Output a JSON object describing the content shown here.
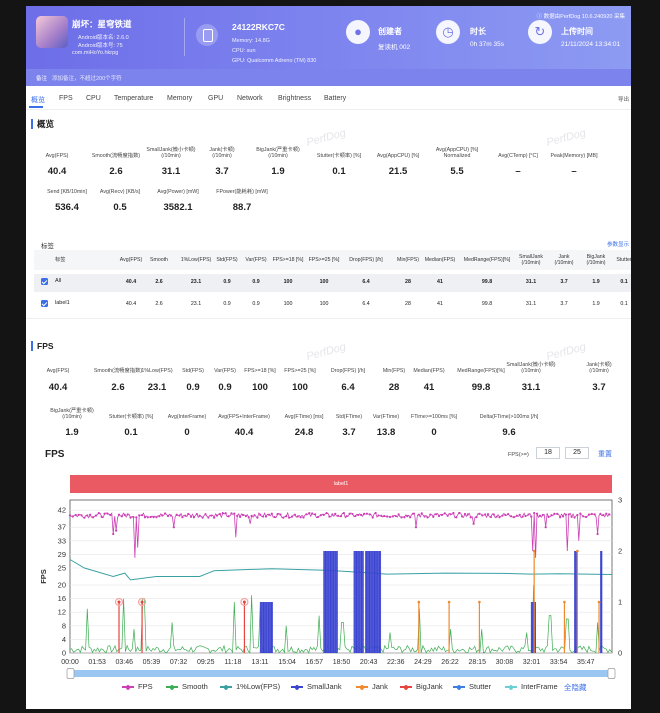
{
  "header": {
    "app_name": "崩坏：星穹铁道",
    "app_version_line": "Android版本名: 2.6.0",
    "app_code_line": "Android版本号: 75",
    "app_package": "com.miHoYo.hkrpg",
    "device_name": "24122RKC7C",
    "memory": "Memory: 14.8G",
    "cpu": "CPU: sun",
    "gpu": "GPU: Qualcomm Adreno (TM) 830",
    "creator_label": "创建者",
    "creator_value": "复读机 002",
    "duration_label": "时长",
    "duration_value": "0h 37m 35s",
    "upload_label": "上传时间",
    "upload_value": "21/11/2024 13:34:01",
    "data_source": "ⓘ 数据由PerfDog 10.6.240920 采集",
    "note_label": "备注",
    "note_placeholder": "添加备注，不超过200个字符"
  },
  "tabs": [
    "概览",
    "FPS",
    "CPU",
    "Temperature",
    "Memory",
    "GPU",
    "Network",
    "Brightness",
    "Battery"
  ],
  "export_label": "导出",
  "overview": {
    "title": "概览",
    "watermark": "PerfDog",
    "row1": [
      {
        "label": "Avg(FPS)",
        "value": "40.4"
      },
      {
        "label": "Smooth(流畅度指数)",
        "value": "2.6"
      },
      {
        "label": "SmallJank(微小卡顿)\n(/10min)",
        "value": "31.1"
      },
      {
        "label": "Jank(卡顿)\n(/10min)",
        "value": "3.7"
      },
      {
        "label": "BigJank(严重卡顿)\n(/10min)",
        "value": "1.9"
      },
      {
        "label": "Stutter(卡顿率) [%]",
        "value": "0.1"
      },
      {
        "label": "Avg(AppCPU) [%]",
        "value": "21.5"
      },
      {
        "label": "Avg(AppCPU) [%]\nNormalized",
        "value": "5.5"
      },
      {
        "label": "Avg(CTemp) [°C]",
        "value": "–"
      },
      {
        "label": "Peak(Memory) [MB]",
        "value": "–"
      }
    ],
    "row2": [
      {
        "label": "Send [KB/10min]",
        "value": "536.4"
      },
      {
        "label": "Avg(Recv) [KB/s]",
        "value": "0.5"
      },
      {
        "label": "Avg(Power) [mW]",
        "value": "3582.1"
      },
      {
        "label": "FPower(能耗耗) [mW]",
        "value": "88.7"
      }
    ]
  },
  "table": {
    "caption": "标签",
    "more": "参数显示",
    "headers": [
      "标签",
      "Avg(FPS)",
      "Smooth",
      "1%Low(FPS)",
      "Std(FPS)",
      "Var(FPS)",
      "FPS>=18 [%]",
      "FPS>=25 [%]",
      "Drop(FPS) [/h]",
      "Min(FPS)",
      "Median(FPS)",
      "MedRange(FPS)[%]",
      "SmallJank\n(/10min)",
      "Jank\n(/10min)",
      "BigJank\n(/10min)",
      "Stutter"
    ],
    "rows": [
      {
        "name": "All",
        "cells": [
          "40.4",
          "2.6",
          "23.1",
          "0.9",
          "0.9",
          "100",
          "100",
          "6.4",
          "28",
          "41",
          "99.8",
          "31.1",
          "3.7",
          "1.9",
          "0.1"
        ]
      },
      {
        "name": "label1",
        "cells": [
          "40.4",
          "2.6",
          "23.1",
          "0.9",
          "0.9",
          "100",
          "100",
          "6.4",
          "28",
          "41",
          "99.8",
          "31.1",
          "3.7",
          "1.9",
          "0.1"
        ]
      }
    ]
  },
  "fps": {
    "title": "FPS",
    "row1": [
      {
        "label": "Avg(FPS)",
        "value": "40.4"
      },
      {
        "label": "Smooth(流畅度指数)",
        "value": "2.6"
      },
      {
        "label": "1%Low(FPS)",
        "value": "23.1"
      },
      {
        "label": "Std(FPS)",
        "value": "0.9"
      },
      {
        "label": "Var(FPS)",
        "value": "0.9"
      },
      {
        "label": "FPS>=18 [%]",
        "value": "100"
      },
      {
        "label": "FPS>=25 [%]",
        "value": "100"
      },
      {
        "label": "Drop(FPS) [/h]",
        "value": "6.4"
      },
      {
        "label": "Min(FPS)",
        "value": "28"
      },
      {
        "label": "Median(FPS)",
        "value": "41"
      },
      {
        "label": "MedRange(FPS)[%]",
        "value": "99.8"
      },
      {
        "label": "SmallJank(微小卡顿)\n(/10min)",
        "value": "31.1"
      },
      {
        "label": "Jank(卡顿)\n(/10min)",
        "value": "3.7"
      }
    ],
    "row2": [
      {
        "label": "BigJank(严重卡顿)\n(/10min)",
        "value": "1.9"
      },
      {
        "label": "Stutter(卡顿率) [%]",
        "value": "0.1"
      },
      {
        "label": "Avg(InterFrame)",
        "value": "0"
      },
      {
        "label": "Avg(FPS+InterFrame)",
        "value": "40.4"
      },
      {
        "label": "Avg(FTime) [ms]",
        "value": "24.8"
      },
      {
        "label": "Std(FTime)",
        "value": "3.7"
      },
      {
        "label": "Var(FTime)",
        "value": "13.8"
      },
      {
        "label": "FTime>=100ms [%]",
        "value": "0"
      },
      {
        "label": "Delta(FTime)>100ms [/h]",
        "value": "9.6"
      }
    ],
    "controls": {
      "label": "FPS(>=)",
      "v1": "18",
      "v2": "25",
      "reset": "重置"
    },
    "label_bar": "label1",
    "legend_all": "全隐藏"
  },
  "chart_data": {
    "type": "line",
    "title": "FPS",
    "xlabel": "",
    "ylabel": "FPS",
    "y2label": "",
    "ylim": [
      0,
      45
    ],
    "y2lim": [
      0,
      3
    ],
    "yticks": [
      0,
      4,
      8,
      12,
      16,
      20,
      25,
      29,
      33,
      37,
      42
    ],
    "y2ticks": [
      0,
      1,
      2,
      3
    ],
    "xticks": [
      "00:00",
      "01:53",
      "03:46",
      "05:39",
      "07:32",
      "09:25",
      "11:18",
      "13:11",
      "15:04",
      "16:57",
      "18:50",
      "20:43",
      "22:36",
      "24:29",
      "26:22",
      "28:15",
      "30:08",
      "32:01",
      "33:54",
      "35:47"
    ],
    "x_range_min": [
      0,
      37.6
    ],
    "grid": true,
    "legend_position": "bottom",
    "series": [
      {
        "name": "FPS",
        "color": "#cc3fb5",
        "axis": "left"
      },
      {
        "name": "Smooth",
        "color": "#3cad52",
        "axis": "left"
      },
      {
        "name": "1%Low(FPS)",
        "color": "#3aa1a3",
        "axis": "left"
      },
      {
        "name": "SmallJank",
        "color": "#3b44d1",
        "axis": "right"
      },
      {
        "name": "Jank",
        "color": "#f08a2c",
        "axis": "right"
      },
      {
        "name": "BigJank",
        "color": "#e4463f",
        "axis": "right"
      },
      {
        "name": "Stutter",
        "color": "#3d7fe0",
        "axis": "right"
      },
      {
        "name": "InterFrame",
        "color": "#6ad0d2",
        "axis": "right"
      }
    ],
    "fps_samples": {
      "baseline": 40.5,
      "dips_min_fps": [
        [
          3.0,
          35
        ],
        [
          3.2,
          36
        ],
        [
          4.5,
          28
        ],
        [
          4.7,
          31
        ],
        [
          7.2,
          37
        ],
        [
          11.5,
          34
        ],
        [
          12.5,
          38
        ],
        [
          24.0,
          37
        ],
        [
          28.0,
          38
        ],
        [
          32.1,
          30
        ],
        [
          32.3,
          28
        ],
        [
          33.0,
          37
        ],
        [
          34.5,
          30
        ],
        [
          35.3,
          33
        ],
        [
          36.6,
          35
        ]
      ]
    },
    "one_percent_low": [
      [
        0,
        27.5
      ],
      [
        1,
        25
      ],
      [
        3,
        22.5
      ],
      [
        3.8,
        23.5
      ],
      [
        4.2,
        21.5
      ],
      [
        6,
        22.5
      ],
      [
        9,
        22.5
      ],
      [
        10,
        24.2
      ],
      [
        14,
        24.8
      ],
      [
        18,
        24.3
      ],
      [
        22,
        23.2
      ],
      [
        26,
        23.5
      ],
      [
        30,
        23.4
      ],
      [
        32,
        23.2
      ],
      [
        34,
        23.3
      ],
      [
        37.6,
        23.1
      ]
    ],
    "smooth_spikes": [
      [
        1.2,
        13
      ],
      [
        3.7,
        16
      ],
      [
        4.4,
        7
      ],
      [
        5.1,
        16
      ],
      [
        7.1,
        9
      ],
      [
        11.4,
        15
      ],
      [
        12.6,
        17
      ],
      [
        13.2,
        14
      ],
      [
        15.0,
        8
      ],
      [
        17.3,
        11
      ],
      [
        18.9,
        9
      ],
      [
        22.2,
        6
      ],
      [
        24.2,
        13
      ],
      [
        26.4,
        7
      ],
      [
        28.6,
        7
      ],
      [
        31.7,
        6
      ],
      [
        32.2,
        20
      ],
      [
        33.3,
        11
      ],
      [
        34.5,
        10
      ],
      [
        36.6,
        9
      ]
    ],
    "smalljank_bursts": [
      [
        13.2,
        14.1,
        1
      ],
      [
        17.6,
        18.6,
        2
      ],
      [
        19.7,
        20.4,
        2
      ],
      [
        20.5,
        21.6,
        2
      ],
      [
        32.0,
        32.3,
        1
      ],
      [
        35.0,
        35.2,
        2
      ],
      [
        36.8,
        36.9,
        2
      ]
    ],
    "jank_events": [
      [
        24.2,
        1
      ],
      [
        26.3,
        1
      ],
      [
        28.4,
        1
      ],
      [
        32.2,
        2
      ],
      [
        34.3,
        1
      ],
      [
        35.2,
        2
      ],
      [
        36.7,
        1
      ]
    ],
    "bigjank_events": [
      [
        3.4,
        1
      ],
      [
        5.0,
        1
      ],
      [
        12.1,
        1
      ]
    ]
  }
}
